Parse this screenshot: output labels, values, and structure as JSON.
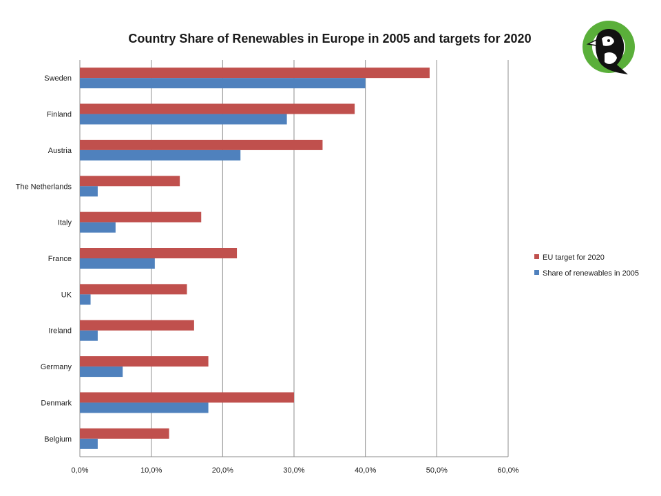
{
  "chart_data": {
    "type": "bar",
    "orientation": "horizontal",
    "title": "Country Share of Renewables in Europe in 2005 and targets for 2020",
    "xlabel": "",
    "ylabel": "",
    "categories": [
      "Sweden",
      "Finland",
      "Austria",
      "The Netherlands",
      "Italy",
      "France",
      "UK",
      "Ireland",
      "Germany",
      "Denmark",
      "Belgium"
    ],
    "series": [
      {
        "name": "EU target for 2020",
        "color": "#c0504d",
        "values": [
          49,
          38.5,
          34,
          14,
          17,
          22,
          15,
          16,
          18,
          30,
          12.5
        ]
      },
      {
        "name": "Share of renewables in 2005",
        "color": "#4f81bd",
        "values": [
          40,
          29,
          22.5,
          2.5,
          5,
          10.5,
          1.5,
          2.5,
          6,
          18,
          2.5
        ]
      }
    ],
    "xlim": [
      0,
      60
    ],
    "xticks": [
      0,
      10,
      20,
      30,
      40,
      50,
      60
    ],
    "xtick_labels": [
      "0,0%",
      "10,0%",
      "20,0%",
      "30,0%",
      "40,0%",
      "50,0%",
      "60,0%"
    ],
    "grid": true,
    "legend_position": "right"
  },
  "logo": {
    "name": "puffin-logo-icon",
    "ring_color": "#5aaf3a",
    "bird_color": "#111111"
  }
}
